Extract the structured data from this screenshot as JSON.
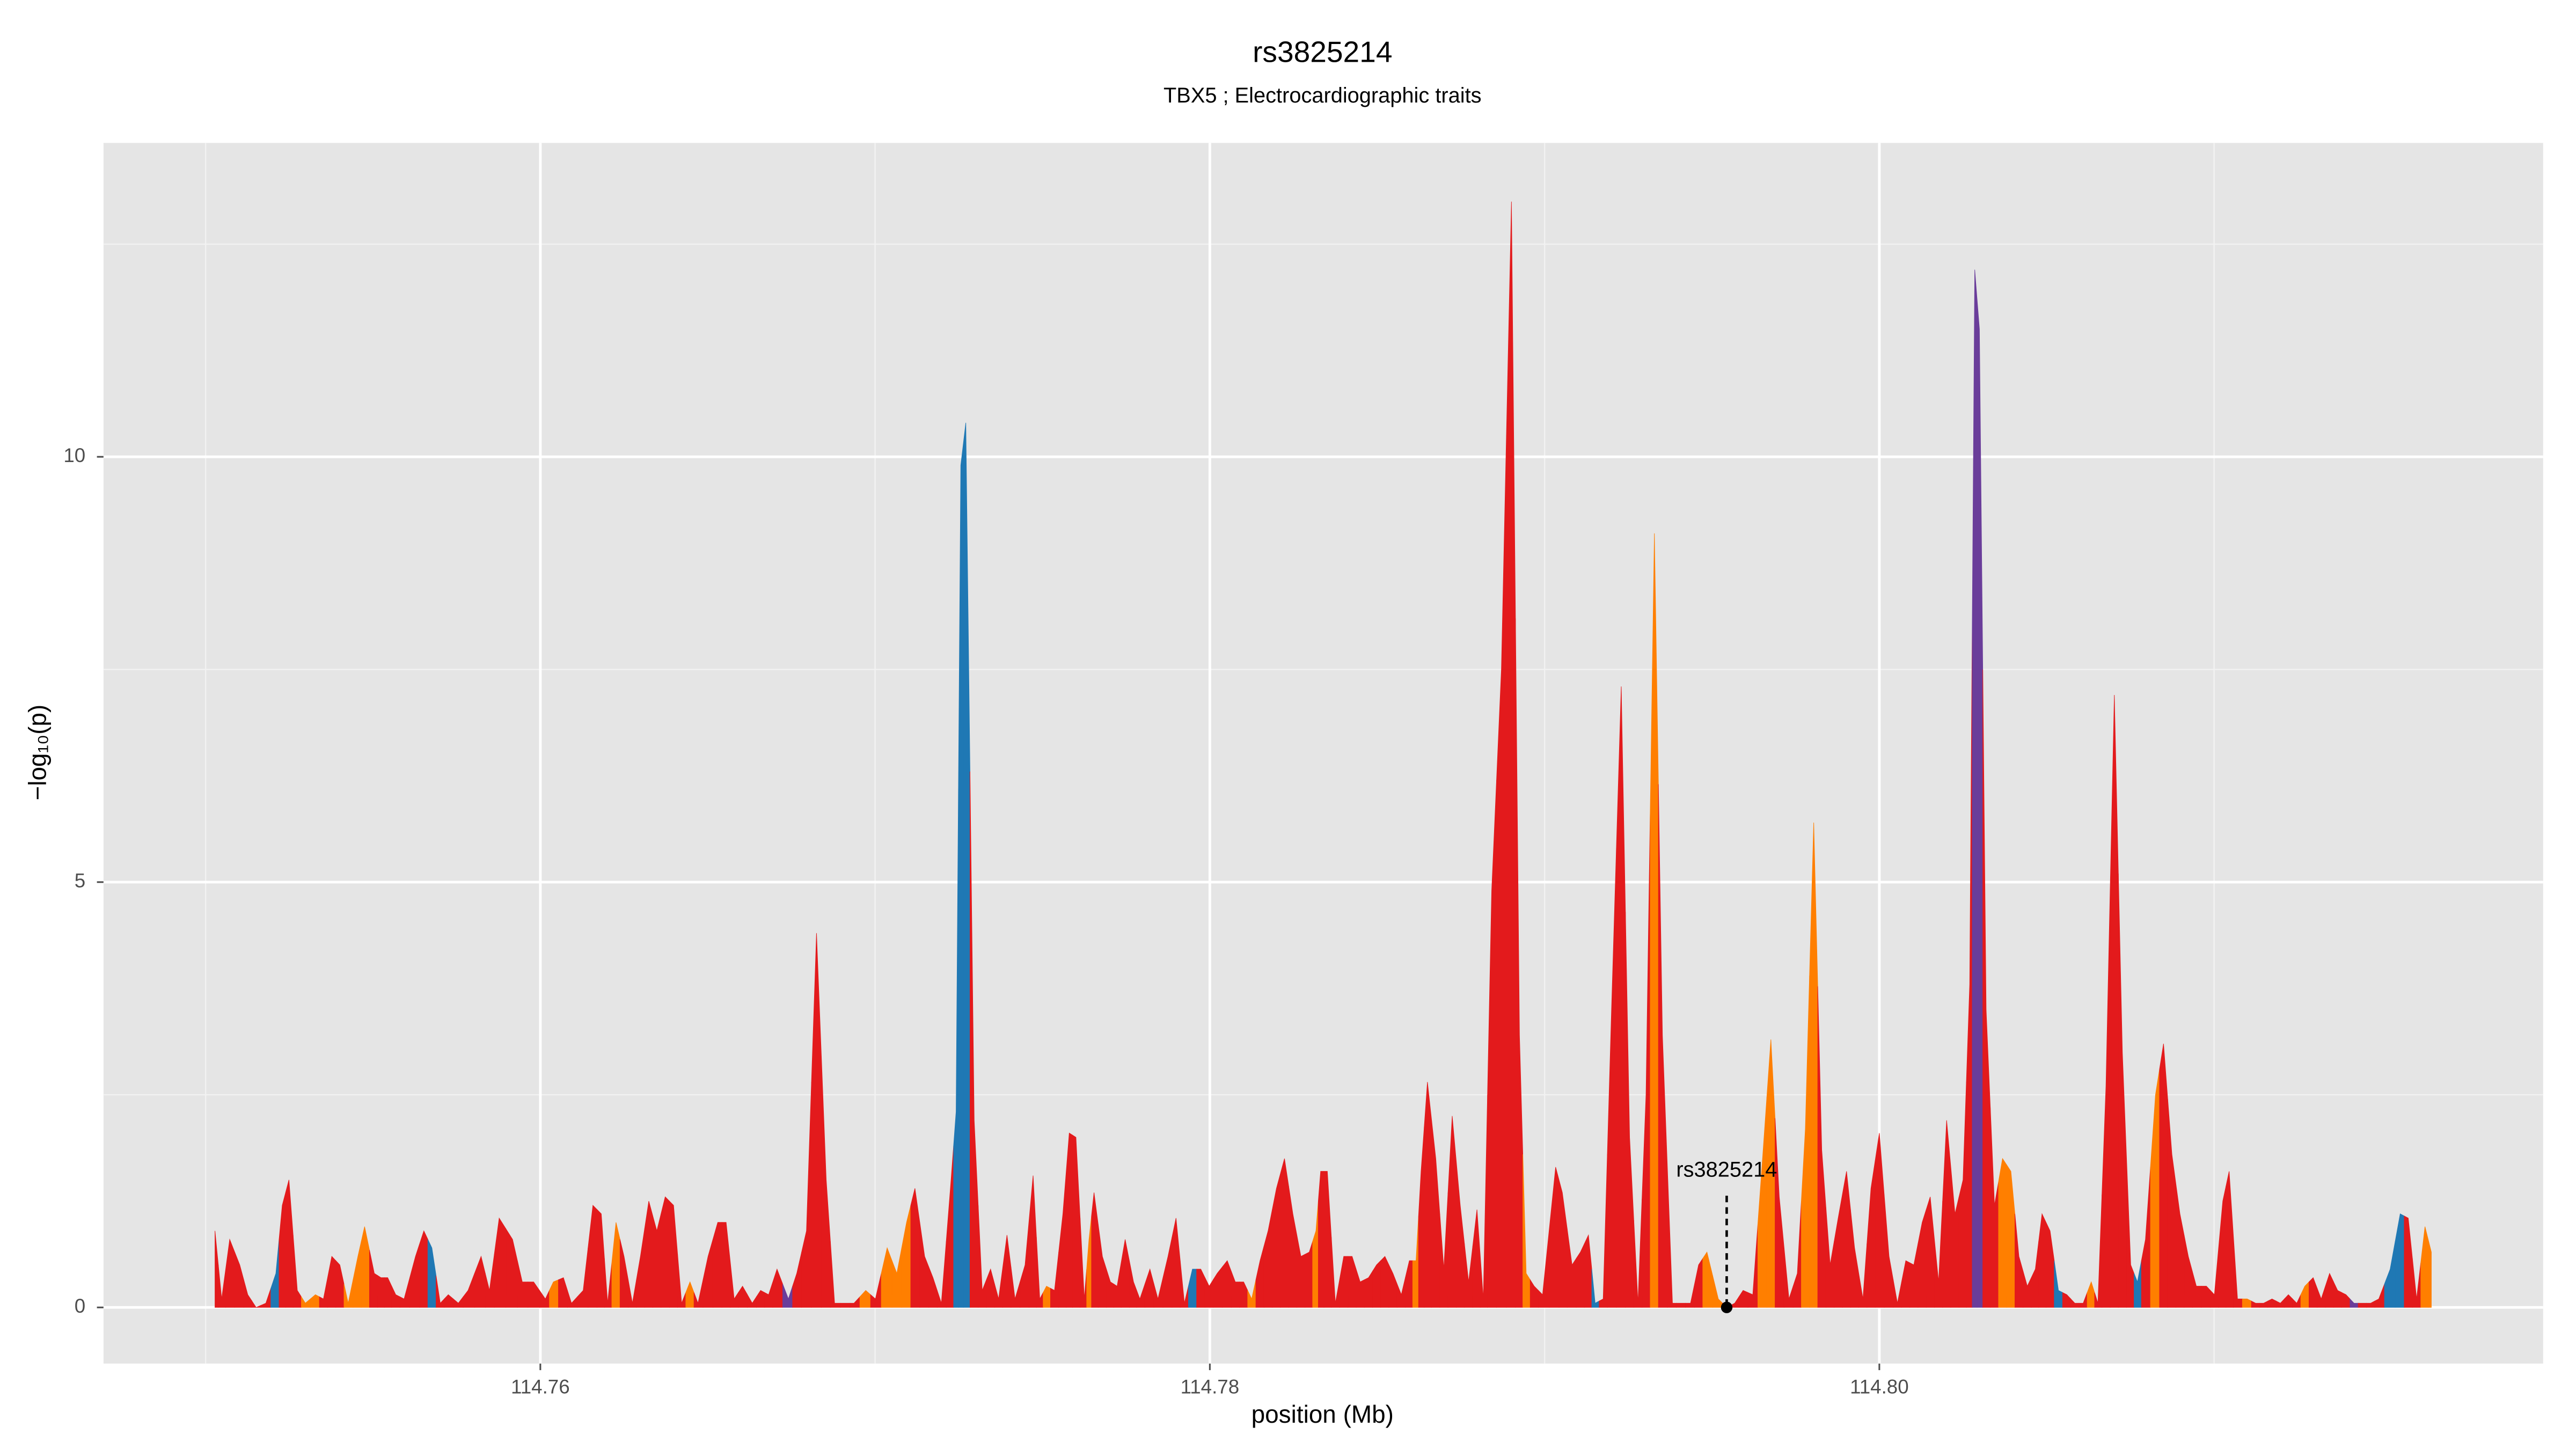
{
  "chart_data": {
    "type": "area",
    "title": "rs3825214",
    "subtitle": "TBX5 ; Electrocardiographic traits",
    "x_label": "position (Mb)",
    "y_label": "−log₁₀(p)",
    "xlim": [
      114.74695,
      114.81983
    ],
    "ylim": [
      -0.66,
      13.69
    ],
    "xticks": [
      114.76,
      114.78,
      {
        "value": 114.8,
        "label": "114.80"
      }
    ],
    "yticks": [
      0,
      5,
      10
    ],
    "x_minor_grid": [
      114.75,
      114.77,
      114.79,
      114.81
    ],
    "y_minor_grid": [
      2.5,
      7.5,
      12.5
    ],
    "grid": true,
    "palette": {
      "r": "#e31a1c",
      "o": "#ff7f00",
      "b": "#1f78b4",
      "p": "#6a3d9a"
    },
    "x": [
      114.75028,
      114.75048,
      114.75072,
      114.75102,
      114.75126,
      114.75151,
      114.7518,
      114.7521,
      114.75229,
      114.75249,
      114.75274,
      114.75298,
      114.75328,
      114.75352,
      114.75377,
      114.75401,
      114.75426,
      114.75455,
      114.75475,
      114.75504,
      114.75524,
      114.75544,
      114.75568,
      114.75593,
      114.75627,
      114.75652,
      114.75676,
      114.75701,
      114.75725,
      114.75755,
      114.75784,
      114.75823,
      114.75848,
      114.75877,
      114.75917,
      114.75946,
      114.7598,
      114.76015,
      114.76039,
      114.76069,
      114.76093,
      114.76128,
      114.76157,
      114.76182,
      114.76201,
      114.76226,
      114.7625,
      114.76275,
      114.76299,
      114.76324,
      114.76348,
      114.76373,
      114.76398,
      114.76422,
      114.76447,
      114.76471,
      114.76501,
      114.7653,
      114.76555,
      114.76579,
      114.76604,
      114.76633,
      114.76658,
      114.76682,
      114.76707,
      114.76741,
      114.76766,
      114.76795,
      114.76825,
      114.76854,
      114.76879,
      114.76913,
      114.76937,
      114.76972,
      114.77001,
      114.77036,
      114.77065,
      114.77094,
      114.77119,
      114.77148,
      114.77173,
      114.77198,
      114.77227,
      114.77242,
      114.77256,
      114.77271,
      114.77296,
      114.7732,
      114.77345,
      114.77369,
      114.77394,
      114.77418,
      114.77448,
      114.77472,
      114.77492,
      114.77512,
      114.77536,
      114.77561,
      114.7758,
      114.776,
      114.77625,
      114.77639,
      114.77654,
      114.77679,
      114.77703,
      114.77723,
      114.77747,
      114.77772,
      114.77791,
      114.77821,
      114.77845,
      114.77875,
      114.77899,
      114.77924,
      114.77948,
      114.77973,
      114.77998,
      114.78022,
      114.78052,
      114.78076,
      114.78101,
      114.78125,
      114.7815,
      114.78174,
      114.78199,
      114.78223,
      114.78248,
      114.78272,
      114.78297,
      114.78317,
      114.78331,
      114.78351,
      114.78375,
      114.784,
      114.78425,
      114.78449,
      114.78474,
      114.78498,
      114.78523,
      114.78547,
      114.78572,
      114.78596,
      114.78616,
      114.78631,
      114.7865,
      114.78675,
      114.78699,
      114.78724,
      114.78748,
      114.78773,
      114.78798,
      114.78817,
      114.78842,
      114.78871,
      114.78901,
      114.78925,
      114.78945,
      114.78969,
      114.78994,
      114.79033,
      114.79053,
      114.79082,
      114.79107,
      114.79131,
      114.79151,
      114.79175,
      114.792,
      114.79229,
      114.79254,
      114.79279,
      114.79303,
      114.79328,
      114.79352,
      114.79382,
      114.79406,
      114.79436,
      114.7946,
      114.79485,
      114.79519,
      114.79544,
      114.79568,
      114.79593,
      114.79622,
      114.79652,
      114.79676,
      114.79701,
      114.7973,
      114.79755,
      114.79779,
      114.79804,
      114.79828,
      114.79853,
      114.79877,
      114.79902,
      114.79926,
      114.79951,
      114.79975,
      114.8,
      114.80029,
      114.80054,
      114.80079,
      114.80103,
      114.80128,
      114.80152,
      114.80177,
      114.80201,
      114.80226,
      114.8025,
      114.8027,
      114.80285,
      114.80299,
      114.80319,
      114.80344,
      114.80368,
      114.80393,
      114.80417,
      114.80442,
      114.80466,
      114.80486,
      114.8051,
      114.80535,
      114.8056,
      114.80584,
      114.80609,
      114.80633,
      114.80653,
      114.80677,
      114.80702,
      114.80726,
      114.80751,
      114.80771,
      114.80795,
      114.80825,
      114.80849,
      114.80874,
      114.80898,
      114.80923,
      114.80947,
      114.80977,
      114.81001,
      114.81026,
      114.81045,
      114.8107,
      114.81099,
      114.81124,
      114.81148,
      114.81173,
      114.81198,
      114.81222,
      114.81247,
      114.81271,
      114.81296,
      114.8132,
      114.81345,
      114.81369,
      114.81394,
      114.81418,
      114.81443,
      114.81468,
      114.81492,
      114.81526,
      114.81556,
      114.8158,
      114.81605,
      114.8163,
      114.81649
    ],
    "values": [
      0.9,
      0.1,
      0.8,
      0.5,
      0.15,
      0,
      0.05,
      0.4,
      1.2,
      1.5,
      0.2,
      0.05,
      0.15,
      0.1,
      0.6,
      0.5,
      0.05,
      0.6,
      0.95,
      0.4,
      0.35,
      0.35,
      0.15,
      0.1,
      0.6,
      0.9,
      0.7,
      0.05,
      0.15,
      0.05,
      0.2,
      0.6,
      0.2,
      1.05,
      0.8,
      0.3,
      0.3,
      0.1,
      0.3,
      0.35,
      0.05,
      0.2,
      1.2,
      1.1,
      0.05,
      1.0,
      0.6,
      0.05,
      0.6,
      1.25,
      0.9,
      1.3,
      1.2,
      0.05,
      0.3,
      0.05,
      0.6,
      1.0,
      1.0,
      0.1,
      0.25,
      0.05,
      0.2,
      0.15,
      0.45,
      0.1,
      0.4,
      0.9,
      4.4,
      1.5,
      0.05,
      0.05,
      0.05,
      0.2,
      0.1,
      0.7,
      0.4,
      1.0,
      1.4,
      0.6,
      0.35,
      0.05,
      1.5,
      2.3,
      9.9,
      10.4,
      2.2,
      0.2,
      0.45,
      0.1,
      0.85,
      0.1,
      0.5,
      1.55,
      0.1,
      0.25,
      0.2,
      1.1,
      2.05,
      2.0,
      0.1,
      0.8,
      1.35,
      0.6,
      0.3,
      0.25,
      0.8,
      0.3,
      0.1,
      0.45,
      0.1,
      0.6,
      1.05,
      0.05,
      0.45,
      0.45,
      0.25,
      0.4,
      0.55,
      0.3,
      0.3,
      0.1,
      0.55,
      0.9,
      1.4,
      1.75,
      1.1,
      0.6,
      0.65,
      0.9,
      1.6,
      1.6,
      0.05,
      0.6,
      0.6,
      0.3,
      0.35,
      0.5,
      0.6,
      0.4,
      0.15,
      0.55,
      0.55,
      1.6,
      2.65,
      1.75,
      0.45,
      2.25,
      1.2,
      0.3,
      1.15,
      0.1,
      4.9,
      7.5,
      13.0,
      3.2,
      0.4,
      0.25,
      0.15,
      1.65,
      1.35,
      0.5,
      0.65,
      0.85,
      0.05,
      0.1,
      3.5,
      7.3,
      2.0,
      0.05,
      2.5,
      9.1,
      3.2,
      0.05,
      0.05,
      0.05,
      0.5,
      0.65,
      0.1,
      0,
      0.05,
      0.2,
      0.15,
      1.8,
      3.15,
      1.3,
      0.1,
      0.4,
      2.1,
      5.7,
      1.85,
      0.5,
      1.05,
      1.6,
      0.7,
      0.1,
      1.4,
      2.05,
      0.6,
      0.05,
      0.55,
      0.5,
      1.0,
      1.3,
      0.3,
      2.2,
      1.1,
      1.5,
      3.8,
      12.2,
      11.5,
      3.5,
      1.2,
      1.75,
      1.6,
      0.6,
      0.25,
      0.45,
      1.1,
      0.9,
      0.2,
      0.15,
      0.05,
      0.05,
      0.3,
      0.05,
      2.6,
      7.2,
      3.0,
      0.5,
      0.3,
      0.8,
      2.5,
      3.1,
      1.8,
      1.1,
      0.6,
      0.25,
      0.25,
      0.15,
      1.25,
      1.6,
      0.1,
      0.1,
      0.05,
      0.05,
      0.1,
      0.05,
      0.15,
      0.05,
      0.25,
      0.35,
      0.1,
      0.4,
      0.2,
      0.15,
      0.05,
      0.05,
      0.05,
      0.1,
      0.45,
      1.1,
      1.05,
      0.1,
      0.95,
      0.65
    ],
    "point_colors": [
      "r",
      "r",
      "r",
      "r",
      "r",
      "r",
      "r",
      "b",
      "r",
      "r",
      "r",
      "o",
      "o",
      "r",
      "r",
      "r",
      "o",
      "o",
      "o",
      "r",
      "r",
      "r",
      "r",
      "r",
      "r",
      "r",
      "b",
      "r",
      "r",
      "r",
      "r",
      "r",
      "r",
      "r",
      "r",
      "r",
      "r",
      "r",
      "o",
      "r",
      "r",
      "r",
      "r",
      "r",
      "r",
      "o",
      "r",
      "r",
      "r",
      "r",
      "r",
      "r",
      "r",
      "r",
      "o",
      "r",
      "r",
      "r",
      "r",
      "r",
      "r",
      "r",
      "r",
      "r",
      "r",
      "p",
      "r",
      "r",
      "r",
      "r",
      "r",
      "r",
      "r",
      "o",
      "r",
      "o",
      "o",
      "o",
      "r",
      "r",
      "r",
      "r",
      "r",
      "b",
      "b",
      "b",
      "r",
      "r",
      "r",
      "r",
      "r",
      "r",
      "r",
      "r",
      "r",
      "o",
      "r",
      "r",
      "r",
      "r",
      "r",
      "o",
      "r",
      "r",
      "r",
      "r",
      "r",
      "r",
      "r",
      "r",
      "r",
      "r",
      "r",
      "r",
      "b",
      "r",
      "r",
      "r",
      "r",
      "r",
      "r",
      "o",
      "r",
      "r",
      "r",
      "r",
      "r",
      "r",
      "r",
      "o",
      "r",
      "r",
      "r",
      "r",
      "r",
      "r",
      "r",
      "r",
      "r",
      "r",
      "r",
      "r",
      "o",
      "r",
      "r",
      "r",
      "r",
      "r",
      "r",
      "r",
      "r",
      "r",
      "r",
      "r",
      "r",
      "r",
      "o",
      "r",
      "r",
      "r",
      "r",
      "r",
      "r",
      "r",
      "b",
      "r",
      "r",
      "r",
      "r",
      "r",
      "r",
      "o",
      "r",
      "r",
      "r",
      "r",
      "r",
      "o",
      "o",
      "r",
      "r",
      "r",
      "r",
      "o",
      "o",
      "r",
      "r",
      "r",
      "o",
      "o",
      "r",
      "r",
      "r",
      "r",
      "r",
      "r",
      "r",
      "r",
      "r",
      "r",
      "r",
      "r",
      "r",
      "r",
      "r",
      "r",
      "r",
      "r",
      "r",
      "p",
      "p",
      "r",
      "r",
      "o",
      "o",
      "r",
      "r",
      "r",
      "r",
      "r",
      "b",
      "r",
      "r",
      "r",
      "o",
      "r",
      "r",
      "r",
      "r",
      "r",
      "b",
      "r",
      "o",
      "r",
      "r",
      "r",
      "r",
      "r",
      "r",
      "r",
      "r",
      "r",
      "r",
      "o",
      "r",
      "r",
      "r",
      "r",
      "r",
      "r",
      "o",
      "r",
      "r",
      "r",
      "r",
      "r",
      "p",
      "r",
      "r",
      "r",
      "b",
      "b",
      "r",
      "r",
      "o",
      "o"
    ],
    "annotation": {
      "label": "rs3825214",
      "x": 114.79544,
      "y": 0
    }
  }
}
